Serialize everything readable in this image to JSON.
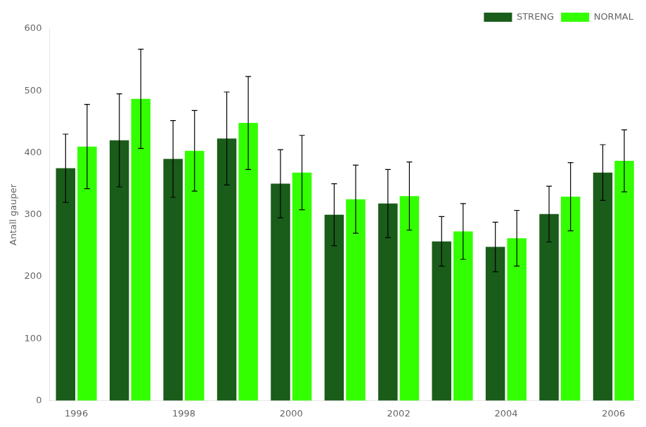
{
  "chart_data": {
    "type": "bar",
    "ylabel": "Antall gauper",
    "categories": [
      "1996",
      null,
      "1998",
      null,
      "2000",
      null,
      "2002",
      null,
      "2004",
      null,
      "2006"
    ],
    "series": [
      {
        "name": "STRENG",
        "color": "#1a5c1a",
        "values": [
          375,
          420,
          390,
          423,
          350,
          300,
          318,
          257,
          248,
          301,
          368
        ],
        "errors": [
          55,
          75,
          62,
          75,
          55,
          50,
          55,
          40,
          40,
          45,
          45
        ]
      },
      {
        "name": "NORMAL",
        "color": "#33ff00",
        "values": [
          410,
          487,
          403,
          448,
          368,
          325,
          330,
          273,
          262,
          329,
          387
        ],
        "errors": [
          68,
          80,
          65,
          75,
          60,
          55,
          55,
          45,
          45,
          55,
          50
        ]
      }
    ],
    "ylim": [
      0,
      600
    ],
    "yticks": [
      0,
      100,
      200,
      300,
      400,
      500,
      600
    ],
    "grid": false,
    "legend": "upper right"
  }
}
